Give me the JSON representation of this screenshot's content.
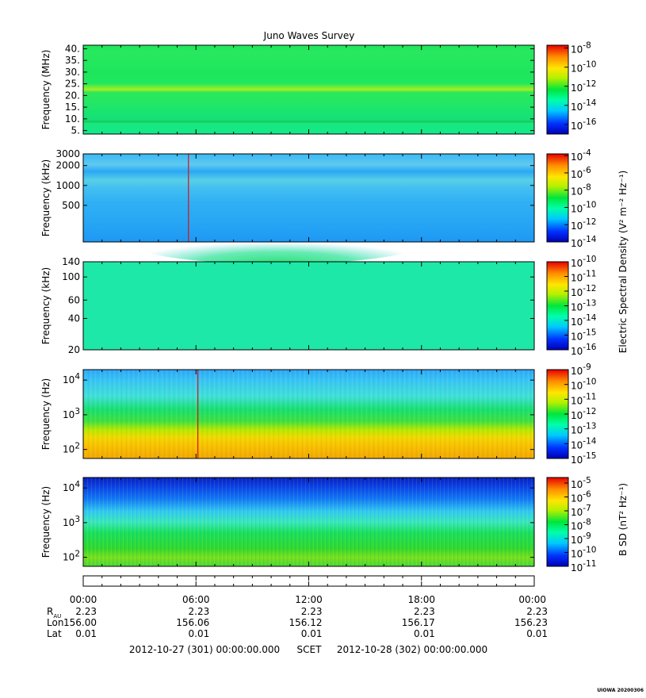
{
  "chart_data": {
    "type": "heatmap",
    "title": "Juno Waves Survey",
    "panels": [
      {
        "id": "p1",
        "ylabel": "Frequency (MHz)",
        "yscale": "linear",
        "ylim": [
          3.5,
          41.5
        ],
        "yticks": [
          {
            "v": 40,
            "label": "40."
          },
          {
            "v": 35,
            "label": "35."
          },
          {
            "v": 30,
            "label": "30."
          },
          {
            "v": 25,
            "label": "25."
          },
          {
            "v": 20,
            "label": "20."
          },
          {
            "v": 15,
            "label": "15."
          },
          {
            "v": 10,
            "label": "10."
          },
          {
            "v": 5,
            "label": "5."
          }
        ],
        "colorbar": {
          "range_exp": [
            -17,
            -7.7
          ],
          "ticks": [
            {
              "exp": -8,
              "label": "-8"
            },
            {
              "exp": -10,
              "label": "-10"
            },
            {
              "exp": -12,
              "label": "-12"
            },
            {
              "exp": -14,
              "label": "-14"
            },
            {
              "exp": -16,
              "label": "-16"
            }
          ]
        }
      },
      {
        "id": "p2",
        "ylabel": "Frequency (kHz)",
        "yscale": "log",
        "ylim": [
          140,
          3000
        ],
        "yticks": [
          {
            "v": 3000,
            "label": "3000"
          },
          {
            "v": 2000,
            "label": "2000"
          },
          {
            "v": 1000,
            "label": "1000"
          },
          {
            "v": 500,
            "label": "500"
          }
        ],
        "colorbar": {
          "range_exp": [
            -14,
            -3.8
          ],
          "ticks": [
            {
              "exp": -4,
              "label": "-4"
            },
            {
              "exp": -6,
              "label": "-6"
            },
            {
              "exp": -8,
              "label": "-8"
            },
            {
              "exp": -10,
              "label": "-10"
            },
            {
              "exp": -12,
              "label": "-12"
            },
            {
              "exp": -14,
              "label": "-14"
            }
          ]
        }
      },
      {
        "id": "p3",
        "ylabel": "Frequency (kHz)",
        "yscale": "log",
        "ylim": [
          20,
          140
        ],
        "yticks": [
          {
            "v": 140,
            "label": "140"
          },
          {
            "v": 100,
            "label": "100"
          },
          {
            "v": 60,
            "label": "60"
          },
          {
            "v": 40,
            "label": "40"
          },
          {
            "v": 20,
            "label": "20"
          }
        ],
        "colorbar": {
          "range_exp": [
            -16,
            -10
          ],
          "ticks": [
            {
              "exp": -10,
              "label": "-10"
            },
            {
              "exp": -11,
              "label": "-11"
            },
            {
              "exp": -12,
              "label": "-12"
            },
            {
              "exp": -13,
              "label": "-13"
            },
            {
              "exp": -14,
              "label": "-14"
            },
            {
              "exp": -15,
              "label": "-15"
            },
            {
              "exp": -16,
              "label": "-16"
            }
          ]
        }
      },
      {
        "id": "p4",
        "ylabel": "Frequency (Hz)",
        "yscale": "log",
        "ylim": [
          55,
          20000
        ],
        "yticks": [
          {
            "v": 10000,
            "exp": "4"
          },
          {
            "v": 1000,
            "exp": "3"
          },
          {
            "v": 100,
            "exp": "2"
          }
        ],
        "colorbar": {
          "range_exp": [
            -15,
            -9
          ],
          "ticks": [
            {
              "exp": -9,
              "label": "-9"
            },
            {
              "exp": -10,
              "label": "-10"
            },
            {
              "exp": -11,
              "label": "-11"
            },
            {
              "exp": -12,
              "label": "-12"
            },
            {
              "exp": -13,
              "label": "-13"
            },
            {
              "exp": -14,
              "label": "-14"
            },
            {
              "exp": -15,
              "label": "-15"
            }
          ]
        }
      },
      {
        "id": "p5",
        "ylabel": "Frequency (Hz)",
        "yscale": "log",
        "ylim": [
          55,
          20000
        ],
        "yticks": [
          {
            "v": 10000,
            "exp": "4"
          },
          {
            "v": 1000,
            "exp": "3"
          },
          {
            "v": 100,
            "exp": "2"
          }
        ],
        "colorbar": {
          "range_exp": [
            -11,
            -4.6
          ],
          "ticks": [
            {
              "exp": -5,
              "label": "-5"
            },
            {
              "exp": -6,
              "label": "-6"
            },
            {
              "exp": -7,
              "label": "-7"
            },
            {
              "exp": -8,
              "label": "-8"
            },
            {
              "exp": -9,
              "label": "-9"
            },
            {
              "exp": -10,
              "label": "-10"
            },
            {
              "exp": -11,
              "label": "-11"
            }
          ]
        }
      }
    ],
    "colorbar_titles": {
      "electric": "Electric Spectral Density (V² m⁻² Hz⁻¹)",
      "magnetic": "B SD (nT² Hz⁻¹)"
    },
    "x_time_range_hours": [
      0,
      24
    ],
    "x_major_ticks_hours": [
      0,
      6,
      12,
      18,
      24
    ],
    "x_minor_step_hours": 1,
    "ephemeris": {
      "times": [
        "00:00",
        "06:00",
        "12:00",
        "18:00",
        "00:00"
      ],
      "rows": [
        {
          "label_main": "R",
          "label_sub": "AU",
          "values": [
            "2.23",
            "2.23",
            "2.23",
            "2.23",
            "2.23"
          ]
        },
        {
          "label_main": "Lon",
          "label_sub": "",
          "values": [
            "156.00",
            "156.06",
            "156.12",
            "156.17",
            "156.23"
          ]
        },
        {
          "label_main": "Lat",
          "label_sub": "",
          "values": [
            "0.01",
            "0.01",
            "0.01",
            "0.01",
            "0.01"
          ]
        }
      ]
    },
    "time_range": {
      "start": "2012-10-27 (301) 00:00:00.000",
      "label": "SCET",
      "end": "2012-10-28 (302) 00:00:00.000"
    },
    "spikes_hours": [
      {
        "panel": "p2",
        "t": 5.6
      },
      {
        "panel": "p4",
        "t": 6.1
      }
    ]
  },
  "footer": {
    "stamp": "UIOWA 20200306"
  }
}
